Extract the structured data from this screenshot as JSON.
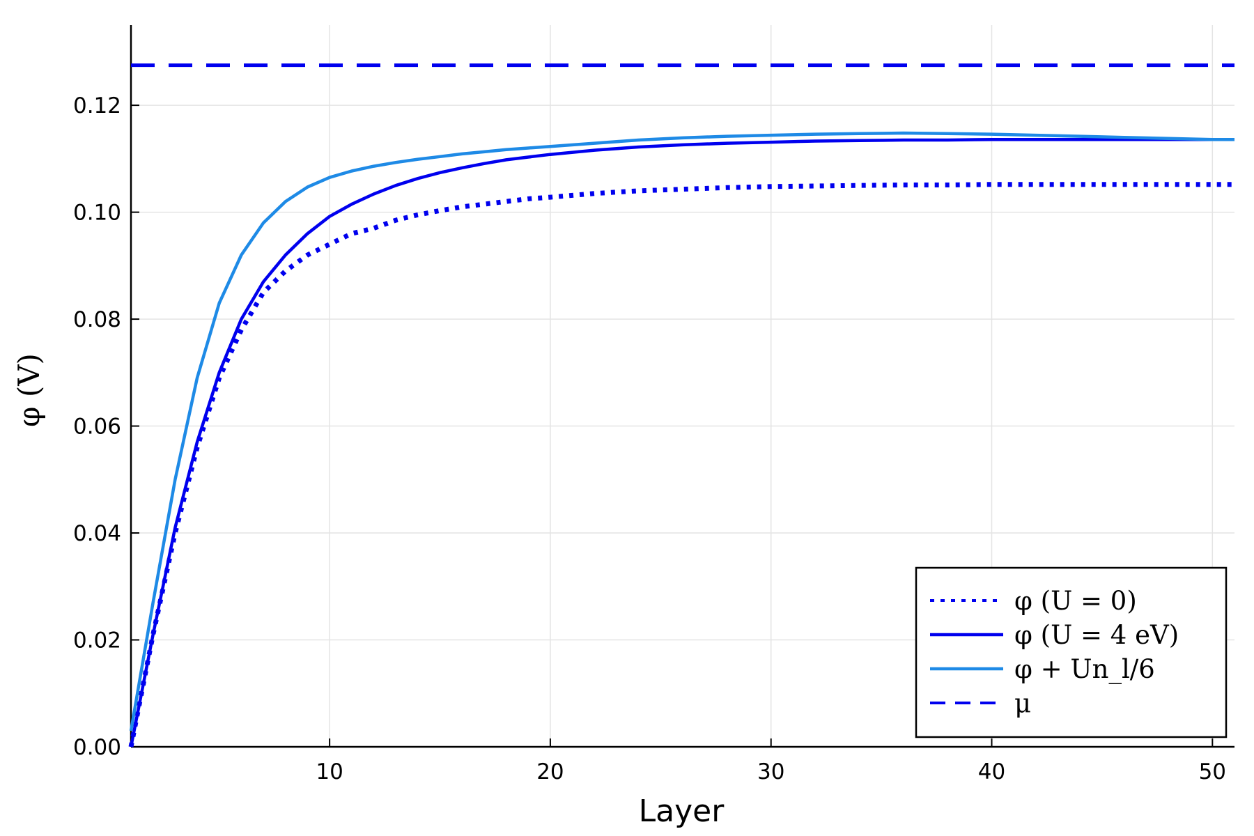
{
  "chart_data": {
    "type": "line",
    "xlabel": "Layer",
    "ylabel": "φ (V)",
    "xlim": [
      1,
      51
    ],
    "ylim": [
      0,
      0.135
    ],
    "x_ticks": [
      10,
      20,
      30,
      40,
      50
    ],
    "y_ticks": [
      0.0,
      0.02,
      0.04,
      0.06,
      0.08,
      0.1,
      0.12
    ],
    "x_tick_labels": [
      "10",
      "20",
      "30",
      "40",
      "50"
    ],
    "y_tick_labels": [
      "0.00",
      "0.02",
      "0.04",
      "0.06",
      "0.08",
      "0.10",
      "0.12"
    ],
    "grid": true,
    "legend_position": "bottom-right",
    "series": [
      {
        "name": "φ (U = 0)",
        "style": "dotted",
        "color": "#0000ee",
        "x": [
          1,
          2,
          3,
          4,
          5,
          6,
          7,
          8,
          9,
          10,
          11,
          12,
          13,
          14,
          15,
          16,
          17,
          18,
          19,
          20,
          22,
          24,
          26,
          28,
          30,
          32,
          34,
          36,
          38,
          40,
          42,
          44,
          46,
          48,
          50,
          51
        ],
        "y": [
          0.0,
          0.021,
          0.04,
          0.056,
          0.069,
          0.078,
          0.085,
          0.089,
          0.092,
          0.094,
          0.096,
          0.097,
          0.0985,
          0.0995,
          0.1003,
          0.101,
          0.1015,
          0.102,
          0.1025,
          0.1028,
          0.1035,
          0.104,
          0.1043,
          0.1046,
          0.1048,
          0.1049,
          0.105,
          0.1051,
          0.1051,
          0.1052,
          0.1052,
          0.1052,
          0.1052,
          0.1052,
          0.1052,
          0.1052
        ]
      },
      {
        "name": "φ (U = 4 eV)",
        "style": "solid",
        "color": "#0000ee",
        "x": [
          1,
          2,
          3,
          4,
          5,
          6,
          7,
          8,
          9,
          10,
          11,
          12,
          13,
          14,
          15,
          16,
          17,
          18,
          19,
          20,
          22,
          24,
          26,
          28,
          30,
          32,
          34,
          36,
          38,
          40,
          42,
          44,
          46,
          48,
          50,
          51
        ],
        "y": [
          0.0,
          0.021,
          0.041,
          0.057,
          0.07,
          0.08,
          0.087,
          0.092,
          0.096,
          0.0992,
          0.1015,
          0.1034,
          0.105,
          0.1063,
          0.1074,
          0.1083,
          0.1091,
          0.1098,
          0.1103,
          0.1108,
          0.1116,
          0.1122,
          0.1126,
          0.1129,
          0.1131,
          0.1133,
          0.1134,
          0.1135,
          0.1135,
          0.1136,
          0.1136,
          0.1136,
          0.1136,
          0.1136,
          0.1136,
          0.1136
        ]
      },
      {
        "name": "φ + Un_l/6",
        "style": "solid",
        "color": "#1e8ae6",
        "x": [
          1,
          2,
          3,
          4,
          5,
          6,
          7,
          8,
          9,
          10,
          11,
          12,
          13,
          14,
          15,
          16,
          17,
          18,
          19,
          20,
          22,
          24,
          26,
          28,
          30,
          32,
          34,
          36,
          38,
          40,
          42,
          44,
          46,
          48,
          50,
          51
        ],
        "y": [
          0.003,
          0.027,
          0.05,
          0.069,
          0.083,
          0.092,
          0.098,
          0.102,
          0.1047,
          0.1065,
          0.1077,
          0.1086,
          0.1093,
          0.1099,
          0.1104,
          0.1109,
          0.1113,
          0.1117,
          0.112,
          0.1123,
          0.1129,
          0.1135,
          0.1139,
          0.1142,
          0.1144,
          0.1146,
          0.1147,
          0.1148,
          0.1147,
          0.1146,
          0.1144,
          0.1142,
          0.114,
          0.1138,
          0.1136,
          0.1136
        ]
      },
      {
        "name": "μ",
        "style": "dashed",
        "color": "#0000ee",
        "x": [
          1,
          51
        ],
        "y": [
          0.1275,
          0.1275
        ]
      }
    ]
  },
  "legend": {
    "entries": [
      {
        "label": "φ (U = 0)",
        "style": "dotted",
        "color": "#0000ee"
      },
      {
        "label": "φ (U = 4 eV)",
        "style": "solid",
        "color": "#0000ee"
      },
      {
        "label": "φ + Un_l/6",
        "style": "solid",
        "color": "#1e8ae6"
      },
      {
        "label": "μ",
        "style": "dashed",
        "color": "#0000ee"
      }
    ]
  }
}
